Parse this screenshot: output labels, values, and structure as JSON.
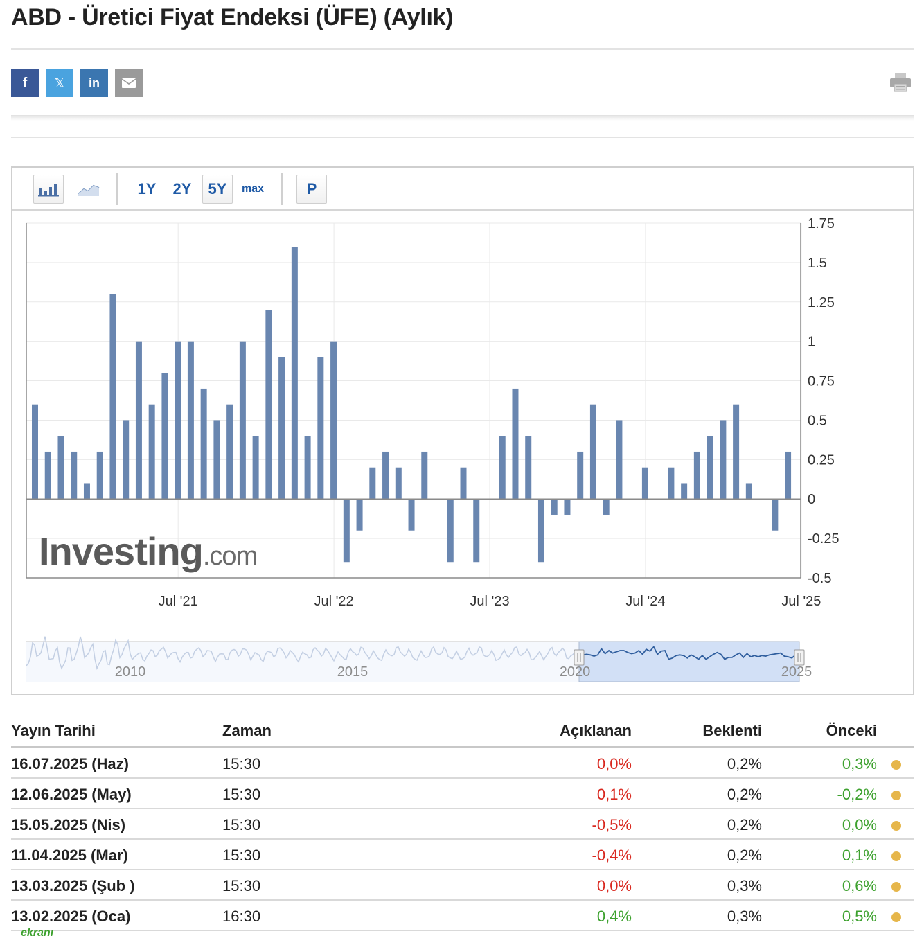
{
  "title": "ABD - Üretici Fiyat Endeksi (ÜFE) (Aylık)",
  "share": {
    "facebook": "f",
    "twitter": "𝕏",
    "linkedin": "in",
    "email_icon": "envelope-icon",
    "print_icon": "printer-icon"
  },
  "toolbar": {
    "bar_icon": "bar-chart-icon",
    "line_icon": "line-chart-icon",
    "ranges": [
      "1Y",
      "2Y",
      "5Y",
      "max"
    ],
    "selected_range": "5Y",
    "p_label": "P"
  },
  "chart_data": {
    "type": "bar",
    "color": "#6986b0",
    "watermark": "Investing.com",
    "y_ticks": [
      "1.75",
      "1.5",
      "1.25",
      "1",
      "0.75",
      "0.5",
      "0.25",
      "0",
      "-0.25",
      "-0.5"
    ],
    "ylim": [
      -0.5,
      1.75
    ],
    "x_ticks": [
      {
        "label": "Jul '21",
        "month_index": 11
      },
      {
        "label": "Jul '22",
        "month_index": 23
      },
      {
        "label": "Jul '23",
        "month_index": 35
      },
      {
        "label": "Jul '24",
        "month_index": 47
      },
      {
        "label": "Jul '25",
        "month_index": 59
      }
    ],
    "values": [
      0.6,
      0.3,
      0.4,
      0.3,
      0.1,
      0.3,
      1.3,
      0.5,
      1.0,
      0.6,
      0.8,
      1.0,
      1.0,
      0.7,
      0.5,
      0.6,
      1.0,
      0.4,
      1.2,
      0.9,
      1.6,
      0.4,
      0.9,
      1.0,
      -0.4,
      -0.2,
      0.2,
      0.3,
      0.2,
      -0.2,
      0.3,
      0.0,
      -0.4,
      0.2,
      -0.4,
      0.0,
      0.4,
      0.7,
      0.4,
      -0.4,
      -0.1,
      -0.1,
      0.3,
      0.6,
      -0.1,
      0.5,
      0.0,
      0.2,
      0.0,
      0.2,
      0.1,
      0.3,
      0.4,
      0.5,
      0.6,
      0.1,
      0.0,
      -0.2,
      0.3,
      0.0
    ],
    "navigator": {
      "labels": [
        "2010",
        "2015",
        "2020",
        "2025"
      ]
    }
  },
  "table": {
    "headers": {
      "date": "Yayın Tarihi",
      "time": "Zaman",
      "actual": "Açıklanan",
      "forecast": "Beklenti",
      "previous": "Önceki"
    },
    "rows": [
      {
        "date": "16.07.2025 (Haz)",
        "time": "15:30",
        "actual": "0,0%",
        "actual_color": "red",
        "forecast": "0,2%",
        "previous": "0,3%",
        "previous_color": "green"
      },
      {
        "date": "12.06.2025 (May)",
        "time": "15:30",
        "actual": "0,1%",
        "actual_color": "red",
        "forecast": "0,2%",
        "previous": "-0,2%",
        "previous_color": "green"
      },
      {
        "date": "15.05.2025 (Nis)",
        "time": "15:30",
        "actual": "-0,5%",
        "actual_color": "red",
        "forecast": "0,2%",
        "previous": "0,0%",
        "previous_color": "green"
      },
      {
        "date": "11.04.2025 (Mar)",
        "time": "15:30",
        "actual": "-0,4%",
        "actual_color": "red",
        "forecast": "0,2%",
        "previous": "0,1%",
        "previous_color": "green"
      },
      {
        "date": "13.03.2025 (Şub )",
        "time": "15:30",
        "actual": "0,0%",
        "actual_color": "red",
        "forecast": "0,3%",
        "previous": "0,6%",
        "previous_color": "green"
      },
      {
        "date": "13.02.2025 (Oca)",
        "time": "16:30",
        "actual": "0,4%",
        "actual_color": "green",
        "forecast": "0,3%",
        "previous": "0,5%",
        "previous_color": "green"
      }
    ]
  },
  "footer": {
    "logo_text": "ekranı"
  }
}
